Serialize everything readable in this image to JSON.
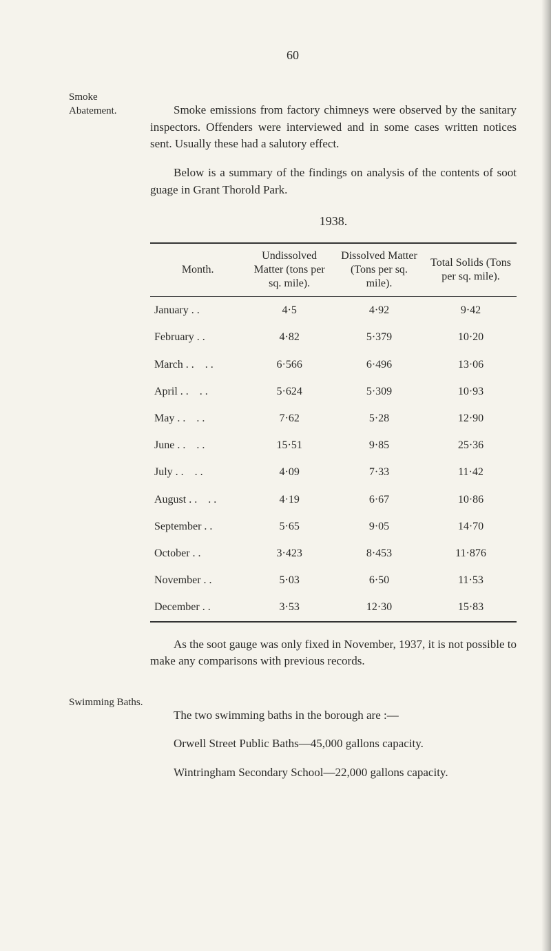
{
  "page_number": "60",
  "sections": {
    "smoke": {
      "margin_label": "Smoke Abatement.",
      "para1": "Smoke emissions from factory chimneys were observed by the sanitary inspectors. Offenders were interviewed and in some cases written notices sent. Usually these had a salutory effect.",
      "para2": "Below is a summary of the findings on analysis of the contents of soot guage in Grant Thorold Park.",
      "year_heading": "1938."
    },
    "table": {
      "headers": {
        "c1": "Month.",
        "c2": "Undissolved Matter (tons per sq. mile).",
        "c3": "Dissolved Matter (Tons per sq. mile).",
        "c4": "Total Solids (Tons per sq. mile)."
      },
      "rows": [
        {
          "month": "January",
          "c2": "4·5",
          "c3": "4·92",
          "c4": "9·42"
        },
        {
          "month": "February",
          "c2": "4·82",
          "c3": "5·379",
          "c4": "10·20"
        },
        {
          "month": "March",
          "c2": "6·566",
          "c3": "6·496",
          "c4": "13·06"
        },
        {
          "month": "April",
          "c2": "5·624",
          "c3": "5·309",
          "c4": "10·93"
        },
        {
          "month": "May",
          "c2": "7·62",
          "c3": "5·28",
          "c4": "12·90"
        },
        {
          "month": "June",
          "c2": "15·51",
          "c3": "9·85",
          "c4": "25·36"
        },
        {
          "month": "July",
          "c2": "4·09",
          "c3": "7·33",
          "c4": "11·42"
        },
        {
          "month": "August",
          "c2": "4·19",
          "c3": "6·67",
          "c4": "10·86"
        },
        {
          "month": "September",
          "c2": "5·65",
          "c3": "9·05",
          "c4": "14·70"
        },
        {
          "month": "October",
          "c2": "3·423",
          "c3": "8·453",
          "c4": "11·876"
        },
        {
          "month": "November",
          "c2": "5·03",
          "c3": "6·50",
          "c4": "11·53"
        },
        {
          "month": "December",
          "c2": "3·53",
          "c3": "12·30",
          "c4": "15·83"
        }
      ]
    },
    "after_table": {
      "para": "As the soot gauge was only fixed in November, 1937, it is not possible to make any comparisons with previous records."
    },
    "swimming": {
      "margin_label": "Swimming Baths.",
      "para1": "The two swimming baths in the borough are :—",
      "line1": "Orwell Street Public Baths—45,000 gallons capacity.",
      "line2": "Wintringham Secondary School—22,000 gallons capacity."
    }
  }
}
